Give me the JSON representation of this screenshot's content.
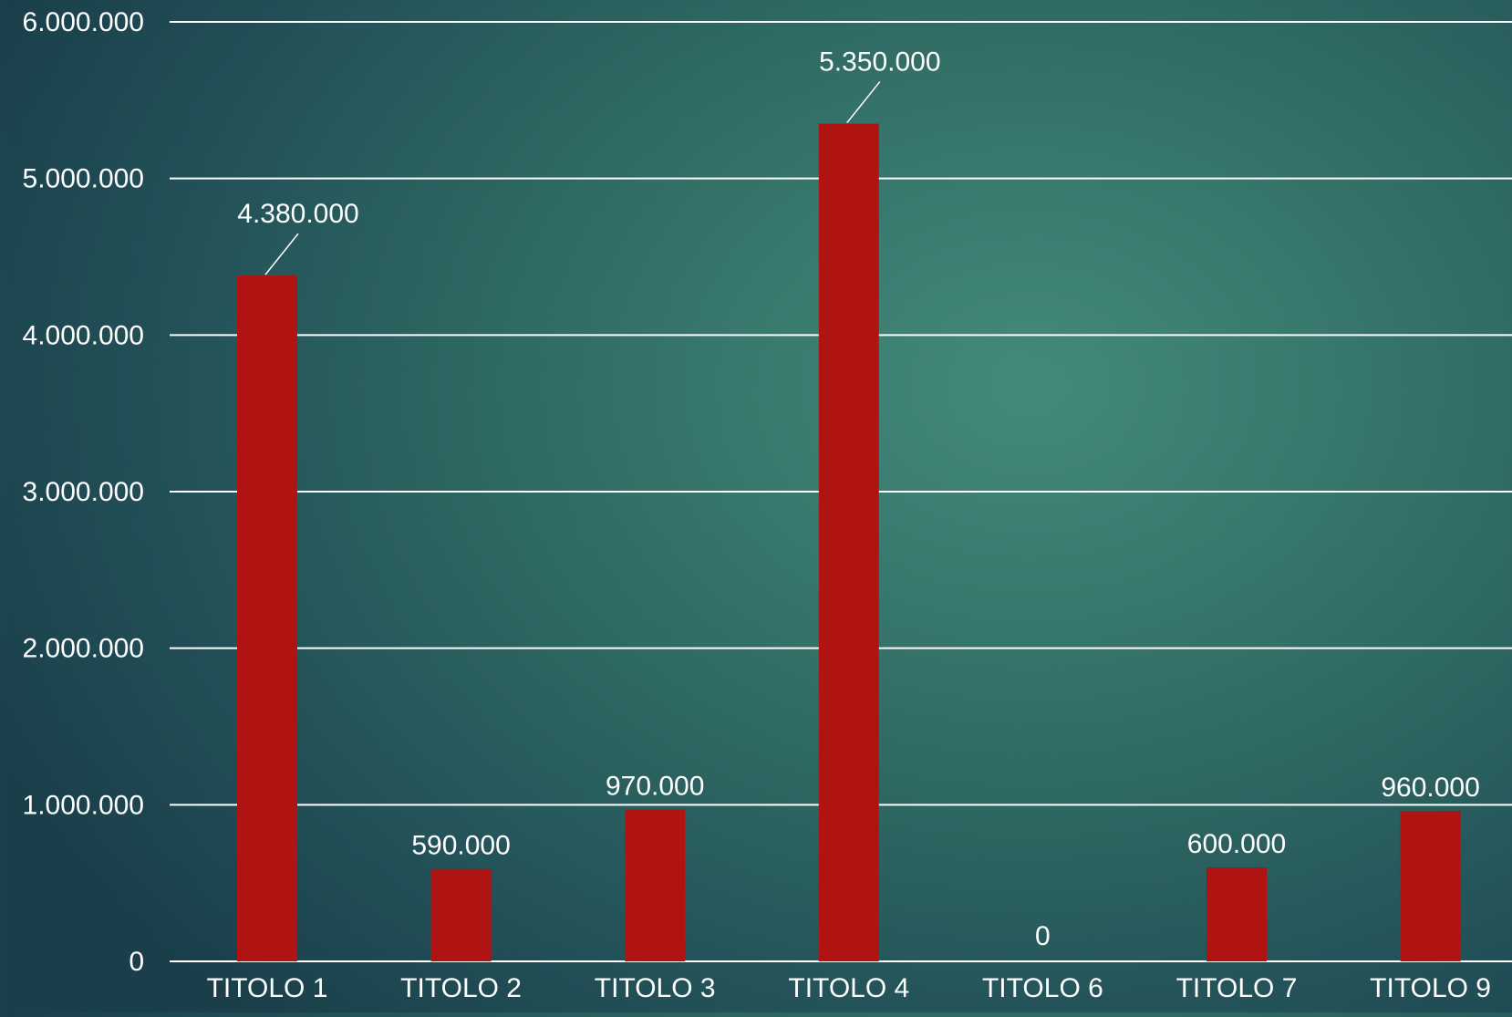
{
  "colors": {
    "bar": "#b01412",
    "gridline": "#ffffff",
    "text": "#ffffff"
  },
  "chart_data": {
    "type": "bar",
    "title": "",
    "xlabel": "",
    "ylabel": "",
    "grid": true,
    "ylim": [
      0,
      6000000
    ],
    "yticks": [
      0,
      1000000,
      2000000,
      3000000,
      4000000,
      5000000,
      6000000
    ],
    "ytick_labels": [
      "0",
      "1.000.000",
      "2.000.000",
      "3.000.000",
      "4.000.000",
      "5.000.000",
      "6.000.000"
    ],
    "categories": [
      "TITOLO 1",
      "TITOLO 2",
      "TITOLO 3",
      "TITOLO 4",
      "TITOLO 6",
      "TITOLO 7",
      "TITOLO 9"
    ],
    "values": [
      4380000,
      590000,
      970000,
      5350000,
      0,
      600000,
      960000
    ],
    "data_labels": [
      "4.380.000",
      "590.000",
      "970.000",
      "5.350.000",
      "0",
      "600.000",
      "960.000"
    ],
    "leader_lines": [
      true,
      false,
      false,
      true,
      false,
      false,
      false
    ]
  }
}
